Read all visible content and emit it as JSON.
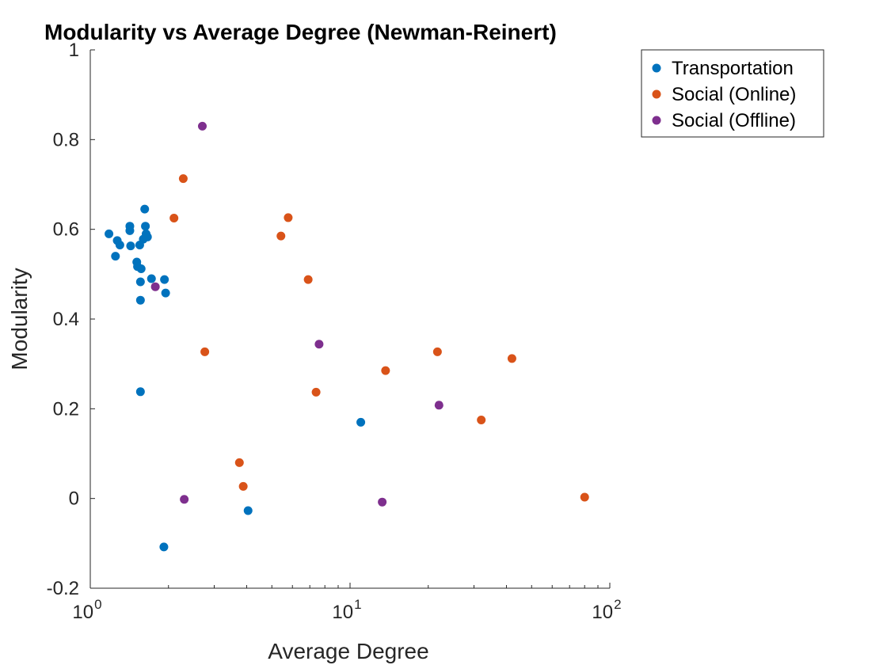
{
  "chart_data": {
    "type": "scatter",
    "title": "Modularity vs Average Degree (Newman-Reinert)",
    "xlabel": "Average Degree",
    "ylabel": "Modularity",
    "xscale": "log",
    "xlim": [
      1,
      100
    ],
    "ylim": [
      -0.2,
      1
    ],
    "grid": false,
    "legend_position": "outside-top-right",
    "x_ticks": [
      {
        "value": 1,
        "base": "10",
        "exp": "0"
      },
      {
        "value": 10,
        "base": "10",
        "exp": "1"
      },
      {
        "value": 100,
        "base": "10",
        "exp": "2"
      }
    ],
    "y_ticks": [
      {
        "value": -0.2,
        "label": "-0.2"
      },
      {
        "value": 0,
        "label": "0"
      },
      {
        "value": 0.2,
        "label": "0.2"
      },
      {
        "value": 0.4,
        "label": "0.4"
      },
      {
        "value": 0.6,
        "label": "0.6"
      },
      {
        "value": 0.8,
        "label": "0.8"
      },
      {
        "value": 1,
        "label": "1"
      }
    ],
    "series": [
      {
        "name": "Transportation",
        "color": "#0072BD",
        "points": [
          [
            1.18,
            0.59
          ],
          [
            1.25,
            0.54
          ],
          [
            1.27,
            0.575
          ],
          [
            1.3,
            0.565
          ],
          [
            1.42,
            0.607
          ],
          [
            1.42,
            0.597
          ],
          [
            1.43,
            0.563
          ],
          [
            1.51,
            0.527
          ],
          [
            1.52,
            0.517
          ],
          [
            1.55,
            0.565
          ],
          [
            1.57,
            0.512
          ],
          [
            1.56,
            0.483
          ],
          [
            1.56,
            0.442
          ],
          [
            1.6,
            0.578
          ],
          [
            1.62,
            0.645
          ],
          [
            1.63,
            0.607
          ],
          [
            1.64,
            0.59
          ],
          [
            1.66,
            0.583
          ],
          [
            1.72,
            0.49
          ],
          [
            1.93,
            0.488
          ],
          [
            1.95,
            0.458
          ],
          [
            1.56,
            0.238
          ],
          [
            1.92,
            -0.108
          ],
          [
            4.05,
            -0.027
          ],
          [
            11.0,
            0.17
          ]
        ]
      },
      {
        "name": "Social (Online)",
        "color": "#D95319",
        "points": [
          [
            2.28,
            0.713
          ],
          [
            2.1,
            0.625
          ],
          [
            2.76,
            0.327
          ],
          [
            3.75,
            0.08
          ],
          [
            3.88,
            0.027
          ],
          [
            5.42,
            0.585
          ],
          [
            5.78,
            0.626
          ],
          [
            6.9,
            0.488
          ],
          [
            7.4,
            0.237
          ],
          [
            13.7,
            0.285
          ],
          [
            21.7,
            0.327
          ],
          [
            32.0,
            0.175
          ],
          [
            42.0,
            0.312
          ],
          [
            80.0,
            0.003
          ]
        ]
      },
      {
        "name": "Social (Offline)",
        "color": "#7E2F8E",
        "points": [
          [
            2.7,
            0.83
          ],
          [
            1.78,
            0.472
          ],
          [
            2.3,
            -0.002
          ],
          [
            7.6,
            0.344
          ],
          [
            13.3,
            -0.008
          ],
          [
            22.0,
            0.208
          ]
        ]
      }
    ]
  }
}
